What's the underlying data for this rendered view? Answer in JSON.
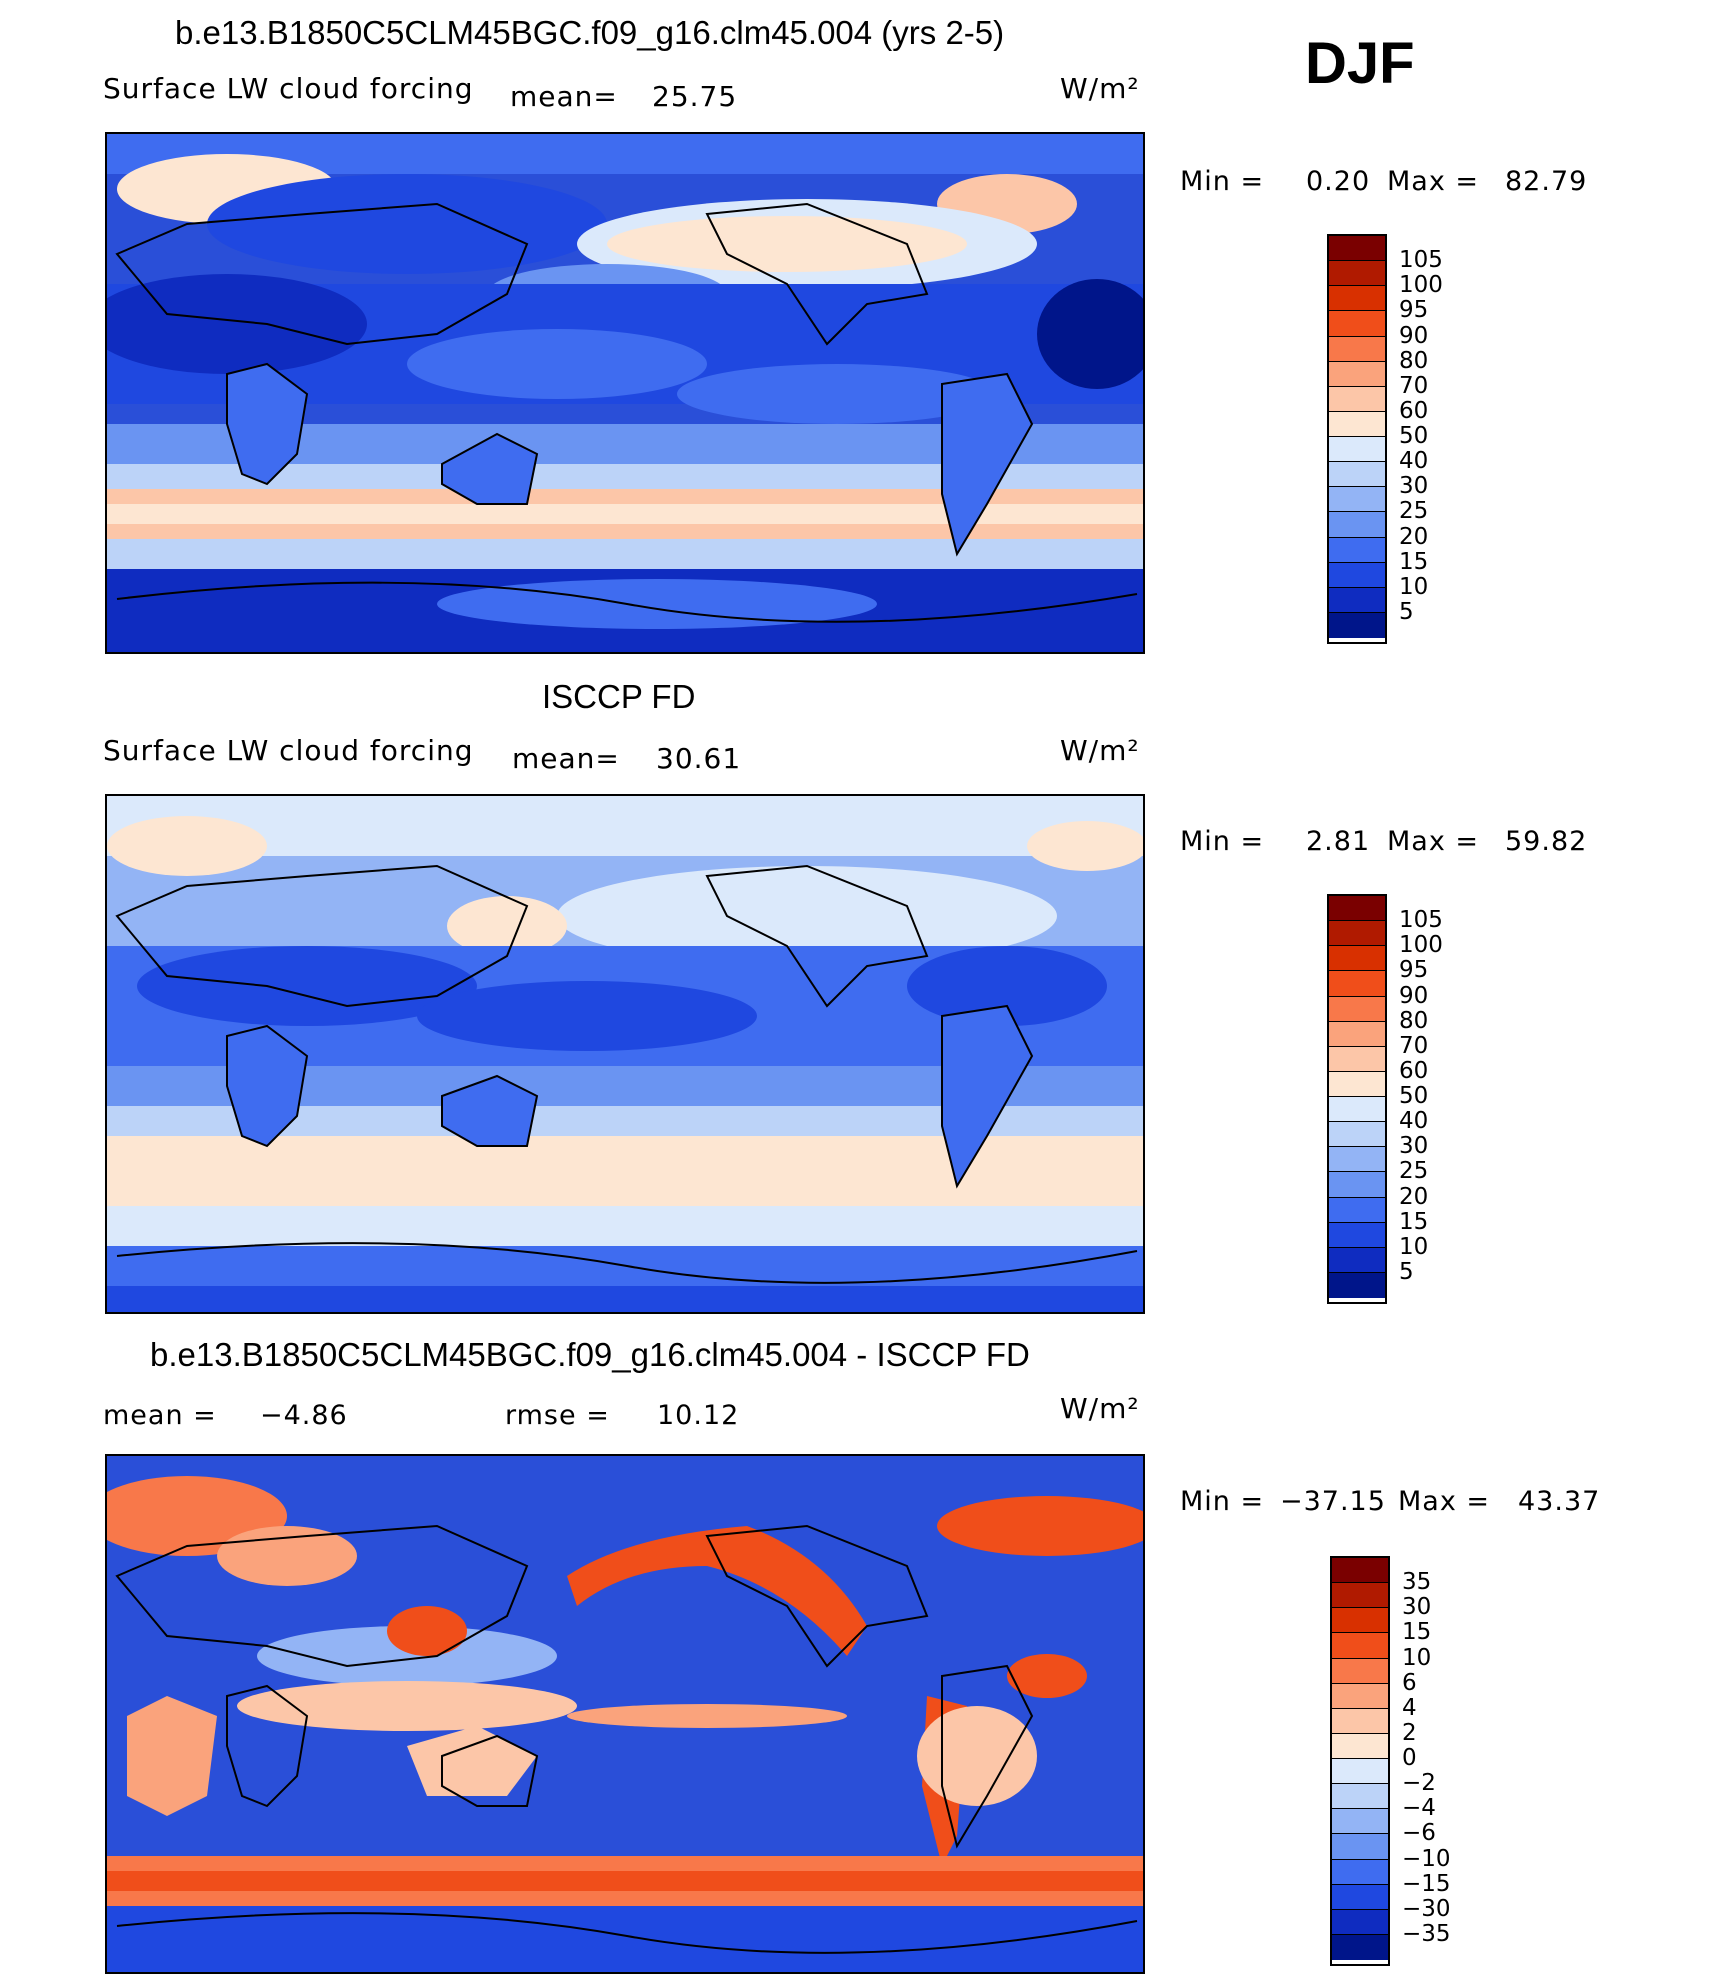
{
  "season": "DJF",
  "units": "W/m²",
  "panels": [
    {
      "title": "b.e13.B1850C5CLM45BGC.f09_g16.clm45.004 (yrs 2-5)",
      "variable": "Surface LW cloud forcing",
      "mean_label": "mean=",
      "mean_value": "25.75",
      "min_label": "Min =",
      "min_value": "0.20",
      "max_label": "Max =",
      "max_value": "82.79",
      "colorbar_levels": [
        "105",
        "100",
        "95",
        "90",
        "80",
        "70",
        "60",
        "50",
        "40",
        "30",
        "25",
        "20",
        "15",
        "10",
        "5"
      ]
    },
    {
      "title": "ISCCP FD",
      "variable": "Surface LW cloud forcing",
      "mean_label": "mean=",
      "mean_value": "30.61",
      "min_label": "Min =",
      "min_value": "2.81",
      "max_label": "Max =",
      "max_value": "59.82",
      "colorbar_levels": [
        "105",
        "100",
        "95",
        "90",
        "80",
        "70",
        "60",
        "50",
        "40",
        "30",
        "25",
        "20",
        "15",
        "10",
        "5"
      ]
    },
    {
      "title": "b.e13.B1850C5CLM45BGC.f09_g16.clm45.004 - ISCCP FD",
      "mean_label": "mean =",
      "mean_value": "−4.86",
      "rmse_label": "rmse =",
      "rmse_value": "10.12",
      "min_label": "Min =",
      "min_value": "−37.15",
      "max_label": "Max =",
      "max_value": "43.37",
      "colorbar_levels": [
        "35",
        "30",
        "15",
        "10",
        "6",
        "4",
        "2",
        "0",
        "−2",
        "−4",
        "−6",
        "−10",
        "−15",
        "−30",
        "−35"
      ]
    }
  ],
  "colorbar_colors": [
    "#7a0000",
    "#b01a00",
    "#d83000",
    "#f04e1a",
    "#f8784a",
    "#faa37c",
    "#fcc6a8",
    "#fde6d2",
    "#dbe9fb",
    "#bcd3f8",
    "#93b4f5",
    "#6a94f2",
    "#3f6cf0",
    "#1f48e0",
    "#0f2cc0",
    "#00158a"
  ],
  "colors": {
    "ocean_deep": "#0f2cc0",
    "ocean_mid": "#3f6cf0",
    "pale_blue": "#bcd3f8",
    "peach": "#fde6d2",
    "salmon": "#faa37c",
    "red": "#f04e1a",
    "coast": "#000000"
  }
}
